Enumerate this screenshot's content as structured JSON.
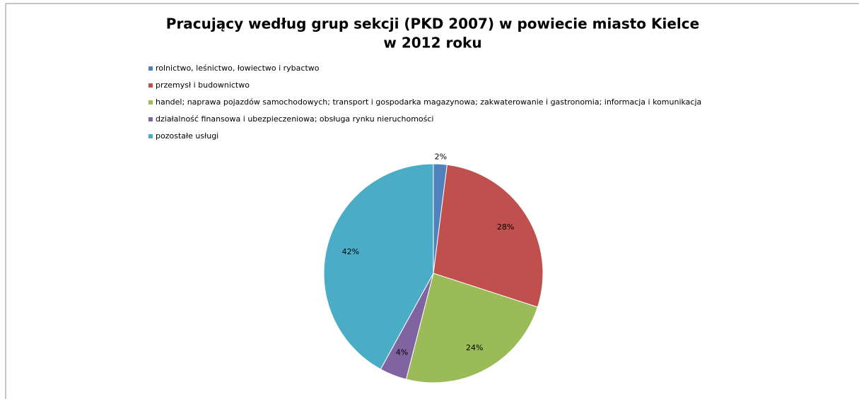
{
  "chart_data": {
    "type": "pie",
    "title": [
      "Pracujący według grup sekcji (PKD 2007) w powiecie miasto Kielce",
      "w 2012 roku"
    ],
    "categories": [
      "rolnictwo, leśnictwo, łowiectwo i rybactwo",
      "przemysł i budownictwo",
      "handel; naprawa pojazdów samochodowych; transport i gospodarka magazynowa; zakwaterowanie i gastronomia; informacja i komunikacja",
      "działalność finansowa i ubezpieczeniowa; obsługa rynku nieruchomości",
      "pozostałe usługi"
    ],
    "values": [
      2,
      28,
      24,
      4,
      42
    ],
    "value_labels": [
      "2%",
      "28%",
      "24%",
      "4%",
      "42%"
    ],
    "colors": [
      "#4f81bd",
      "#c0504d",
      "#9bbb59",
      "#8064a2",
      "#4bacc6"
    ],
    "legend": "top-left"
  }
}
